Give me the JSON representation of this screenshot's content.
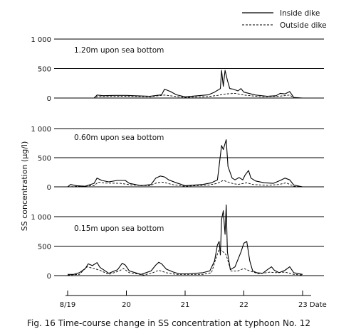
{
  "chart_data": [
    {
      "type": "line",
      "label": "1.20m upon sea bottom",
      "ylim": [
        0,
        1000
      ],
      "x_range": [
        19,
        23
      ],
      "series": [
        {
          "name": "Inside dike",
          "style": "solid",
          "points": [
            [
              19.0,
              0
            ],
            [
              19.45,
              0
            ],
            [
              19.5,
              50
            ],
            [
              19.6,
              40
            ],
            [
              19.8,
              45
            ],
            [
              20.0,
              45
            ],
            [
              20.4,
              30
            ],
            [
              20.6,
              55
            ],
            [
              20.65,
              150
            ],
            [
              20.75,
              110
            ],
            [
              20.85,
              55
            ],
            [
              21.0,
              20
            ],
            [
              21.4,
              55
            ],
            [
              21.5,
              100
            ],
            [
              21.6,
              160
            ],
            [
              21.62,
              470
            ],
            [
              21.65,
              200
            ],
            [
              21.68,
              470
            ],
            [
              21.72,
              300
            ],
            [
              21.76,
              160
            ],
            [
              21.82,
              150
            ],
            [
              21.9,
              120
            ],
            [
              21.95,
              160
            ],
            [
              22.0,
              100
            ],
            [
              22.2,
              50
            ],
            [
              22.4,
              30
            ],
            [
              22.55,
              40
            ],
            [
              22.62,
              80
            ],
            [
              22.7,
              70
            ],
            [
              22.78,
              110
            ],
            [
              22.85,
              10
            ],
            [
              23.0,
              0
            ]
          ]
        },
        {
          "name": "Outside dike",
          "style": "dashed",
          "points": [
            [
              19.0,
              0
            ],
            [
              19.45,
              0
            ],
            [
              19.5,
              25
            ],
            [
              20.0,
              30
            ],
            [
              20.4,
              20
            ],
            [
              20.65,
              50
            ],
            [
              20.85,
              25
            ],
            [
              21.0,
              10
            ],
            [
              21.4,
              25
            ],
            [
              21.55,
              45
            ],
            [
              21.7,
              70
            ],
            [
              21.85,
              80
            ],
            [
              22.0,
              50
            ],
            [
              22.3,
              20
            ],
            [
              22.6,
              30
            ],
            [
              22.78,
              50
            ],
            [
              22.85,
              5
            ],
            [
              23.0,
              0
            ]
          ]
        }
      ]
    },
    {
      "type": "line",
      "label": "0.60m upon sea bottom",
      "ylim": [
        0,
        1000
      ],
      "x_range": [
        19,
        23
      ],
      "series": [
        {
          "name": "Inside dike",
          "style": "solid",
          "points": [
            [
              19.0,
              0
            ],
            [
              19.05,
              40
            ],
            [
              19.15,
              20
            ],
            [
              19.3,
              10
            ],
            [
              19.45,
              60
            ],
            [
              19.5,
              150
            ],
            [
              19.58,
              110
            ],
            [
              19.7,
              85
            ],
            [
              19.85,
              110
            ],
            [
              19.98,
              110
            ],
            [
              20.05,
              60
            ],
            [
              20.25,
              20
            ],
            [
              20.42,
              40
            ],
            [
              20.5,
              150
            ],
            [
              20.58,
              185
            ],
            [
              20.65,
              170
            ],
            [
              20.72,
              120
            ],
            [
              20.85,
              70
            ],
            [
              21.0,
              20
            ],
            [
              21.3,
              40
            ],
            [
              21.45,
              70
            ],
            [
              21.55,
              120
            ],
            [
              21.62,
              710
            ],
            [
              21.65,
              640
            ],
            [
              21.7,
              810
            ],
            [
              21.73,
              350
            ],
            [
              21.8,
              150
            ],
            [
              21.85,
              120
            ],
            [
              21.92,
              160
            ],
            [
              21.98,
              120
            ],
            [
              22.02,
              200
            ],
            [
              22.08,
              280
            ],
            [
              22.12,
              150
            ],
            [
              22.2,
              100
            ],
            [
              22.35,
              70
            ],
            [
              22.5,
              60
            ],
            [
              22.62,
              110
            ],
            [
              22.7,
              150
            ],
            [
              22.78,
              120
            ],
            [
              22.85,
              30
            ],
            [
              23.0,
              0
            ]
          ]
        },
        {
          "name": "Outside dike",
          "style": "dashed",
          "points": [
            [
              19.0,
              0
            ],
            [
              19.45,
              20
            ],
            [
              19.52,
              80
            ],
            [
              19.65,
              65
            ],
            [
              19.9,
              60
            ],
            [
              20.1,
              30
            ],
            [
              20.4,
              20
            ],
            [
              20.52,
              70
            ],
            [
              20.62,
              80
            ],
            [
              20.8,
              35
            ],
            [
              21.0,
              10
            ],
            [
              21.4,
              30
            ],
            [
              21.55,
              60
            ],
            [
              21.65,
              110
            ],
            [
              21.8,
              60
            ],
            [
              21.9,
              40
            ],
            [
              22.05,
              70
            ],
            [
              22.15,
              40
            ],
            [
              22.4,
              25
            ],
            [
              22.6,
              40
            ],
            [
              22.72,
              70
            ],
            [
              22.85,
              10
            ],
            [
              23.0,
              0
            ]
          ]
        }
      ]
    },
    {
      "type": "line",
      "label": "0.15m upon sea bottom",
      "ylim": [
        0,
        1000
      ],
      "x_range": [
        19,
        23
      ],
      "series": [
        {
          "name": "Inside dike",
          "style": "solid",
          "points": [
            [
              19.0,
              20
            ],
            [
              19.1,
              20
            ],
            [
              19.2,
              50
            ],
            [
              19.3,
              120
            ],
            [
              19.35,
              200
            ],
            [
              19.42,
              170
            ],
            [
              19.5,
              220
            ],
            [
              19.55,
              140
            ],
            [
              19.7,
              40
            ],
            [
              19.85,
              100
            ],
            [
              19.93,
              210
            ],
            [
              19.98,
              180
            ],
            [
              20.05,
              80
            ],
            [
              20.25,
              20
            ],
            [
              20.42,
              80
            ],
            [
              20.5,
              180
            ],
            [
              20.55,
              225
            ],
            [
              20.6,
              200
            ],
            [
              20.68,
              110
            ],
            [
              20.8,
              60
            ],
            [
              20.9,
              30
            ],
            [
              21.05,
              30
            ],
            [
              21.3,
              50
            ],
            [
              21.42,
              80
            ],
            [
              21.5,
              250
            ],
            [
              21.55,
              520
            ],
            [
              21.58,
              580
            ],
            [
              21.6,
              350
            ],
            [
              21.62,
              950
            ],
            [
              21.65,
              1100
            ],
            [
              21.68,
              700
            ],
            [
              21.7,
              1200
            ],
            [
              21.72,
              400
            ],
            [
              21.77,
              100
            ],
            [
              21.85,
              150
            ],
            [
              21.95,
              400
            ],
            [
              22.0,
              550
            ],
            [
              22.05,
              580
            ],
            [
              22.1,
              250
            ],
            [
              22.15,
              80
            ],
            [
              22.22,
              50
            ],
            [
              22.32,
              40
            ],
            [
              22.4,
              100
            ],
            [
              22.47,
              150
            ],
            [
              22.52,
              90
            ],
            [
              22.6,
              50
            ],
            [
              22.7,
              90
            ],
            [
              22.78,
              150
            ],
            [
              22.85,
              50
            ],
            [
              23.0,
              20
            ]
          ]
        },
        {
          "name": "Outside dike",
          "style": "dashed",
          "points": [
            [
              19.0,
              10
            ],
            [
              19.2,
              20
            ],
            [
              19.33,
              150
            ],
            [
              19.45,
              120
            ],
            [
              19.55,
              90
            ],
            [
              19.7,
              20
            ],
            [
              19.88,
              80
            ],
            [
              19.95,
              120
            ],
            [
              20.05,
              50
            ],
            [
              20.3,
              10
            ],
            [
              20.45,
              50
            ],
            [
              20.55,
              90
            ],
            [
              20.68,
              50
            ],
            [
              20.85,
              20
            ],
            [
              21.3,
              20
            ],
            [
              21.45,
              50
            ],
            [
              21.52,
              280
            ],
            [
              21.58,
              450
            ],
            [
              21.65,
              400
            ],
            [
              21.7,
              350
            ],
            [
              21.78,
              80
            ],
            [
              21.9,
              80
            ],
            [
              22.0,
              120
            ],
            [
              22.1,
              80
            ],
            [
              22.25,
              30
            ],
            [
              22.45,
              60
            ],
            [
              22.52,
              50
            ],
            [
              22.7,
              60
            ],
            [
              22.85,
              20
            ],
            [
              23.0,
              10
            ]
          ]
        }
      ]
    }
  ],
  "ytick_labels": [
    "1 000",
    "500",
    "0"
  ],
  "xtick_labels": [
    "8/19",
    "20",
    "21",
    "22",
    "23 Date"
  ],
  "ylabel": "SS concentration  (μg/l)",
  "legend": {
    "inside": "Inside dike",
    "outside": "Outside dike"
  },
  "caption": "Fig. 16   Time-course change in SS concentration at typhoon No. 12"
}
